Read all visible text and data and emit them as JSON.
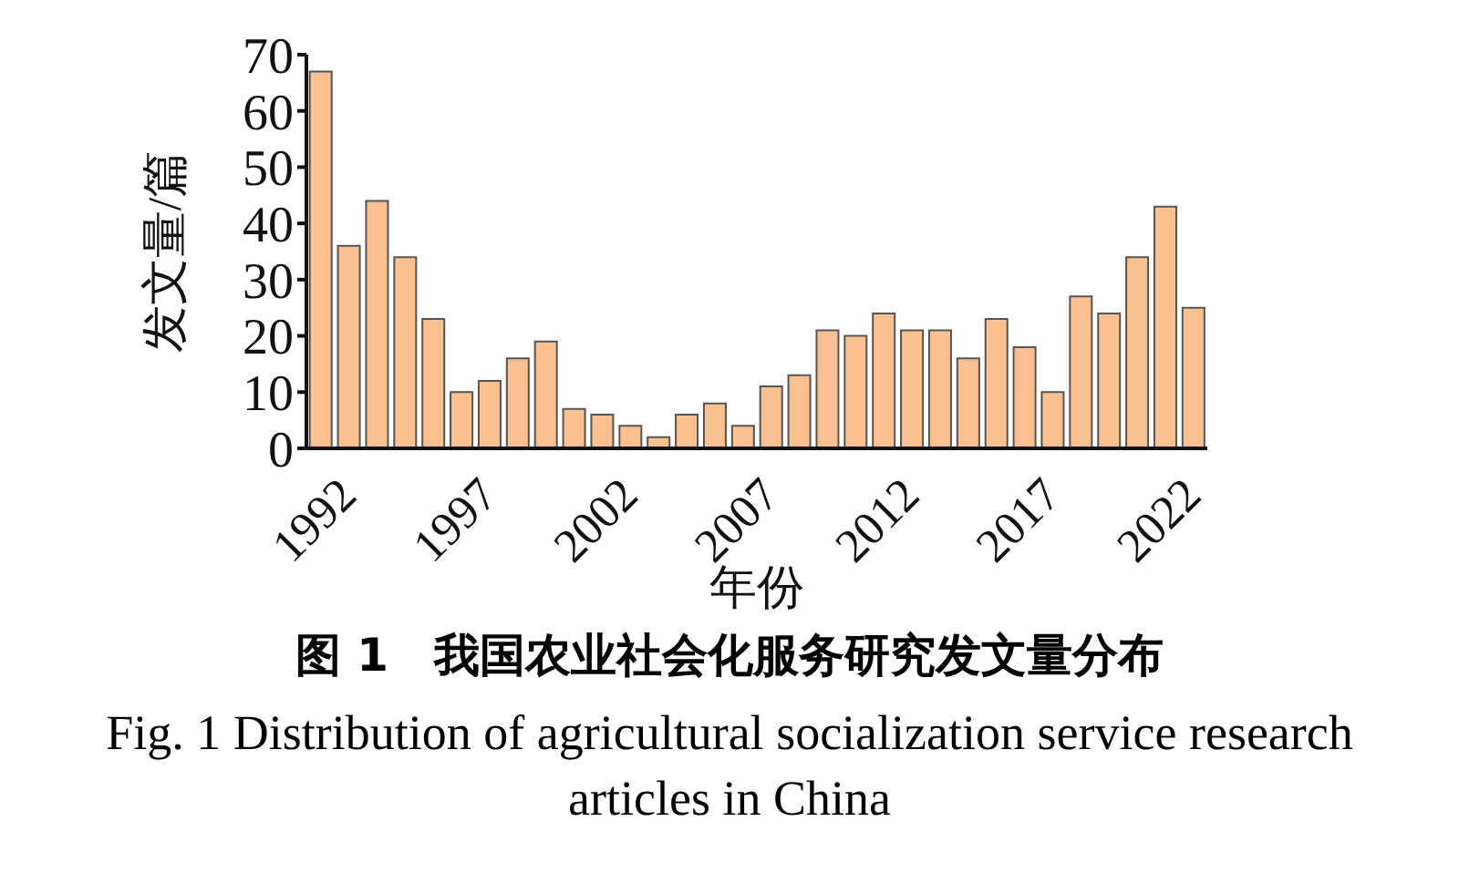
{
  "chart_data": {
    "type": "bar",
    "title": "图 1　我国农业社会化服务研究发文量分布",
    "subtitle": "Fig. 1 Distribution of agricultural socialization service research articles in China",
    "xlabel": "年份",
    "ylabel": "发文量/篇",
    "categories": [
      "1992",
      null,
      null,
      null,
      null,
      "1997",
      null,
      null,
      null,
      null,
      "2002",
      null,
      null,
      null,
      null,
      "2007",
      null,
      null,
      null,
      null,
      "2012",
      null,
      null,
      null,
      null,
      "2017",
      null,
      null,
      null,
      null,
      "2022",
      null
    ],
    "values": [
      67,
      36,
      44,
      34,
      23,
      10,
      12,
      16,
      19,
      7,
      6,
      4,
      2,
      6,
      8,
      4,
      11,
      13,
      21,
      20,
      24,
      21,
      21,
      16,
      23,
      18,
      10,
      27,
      24,
      34,
      43,
      25
    ],
    "color": "#fbc08f",
    "ylim": [
      0,
      70
    ],
    "yticks": [
      0,
      10,
      20,
      30,
      40,
      50,
      60,
      70
    ],
    "grid": false,
    "legend": false
  }
}
